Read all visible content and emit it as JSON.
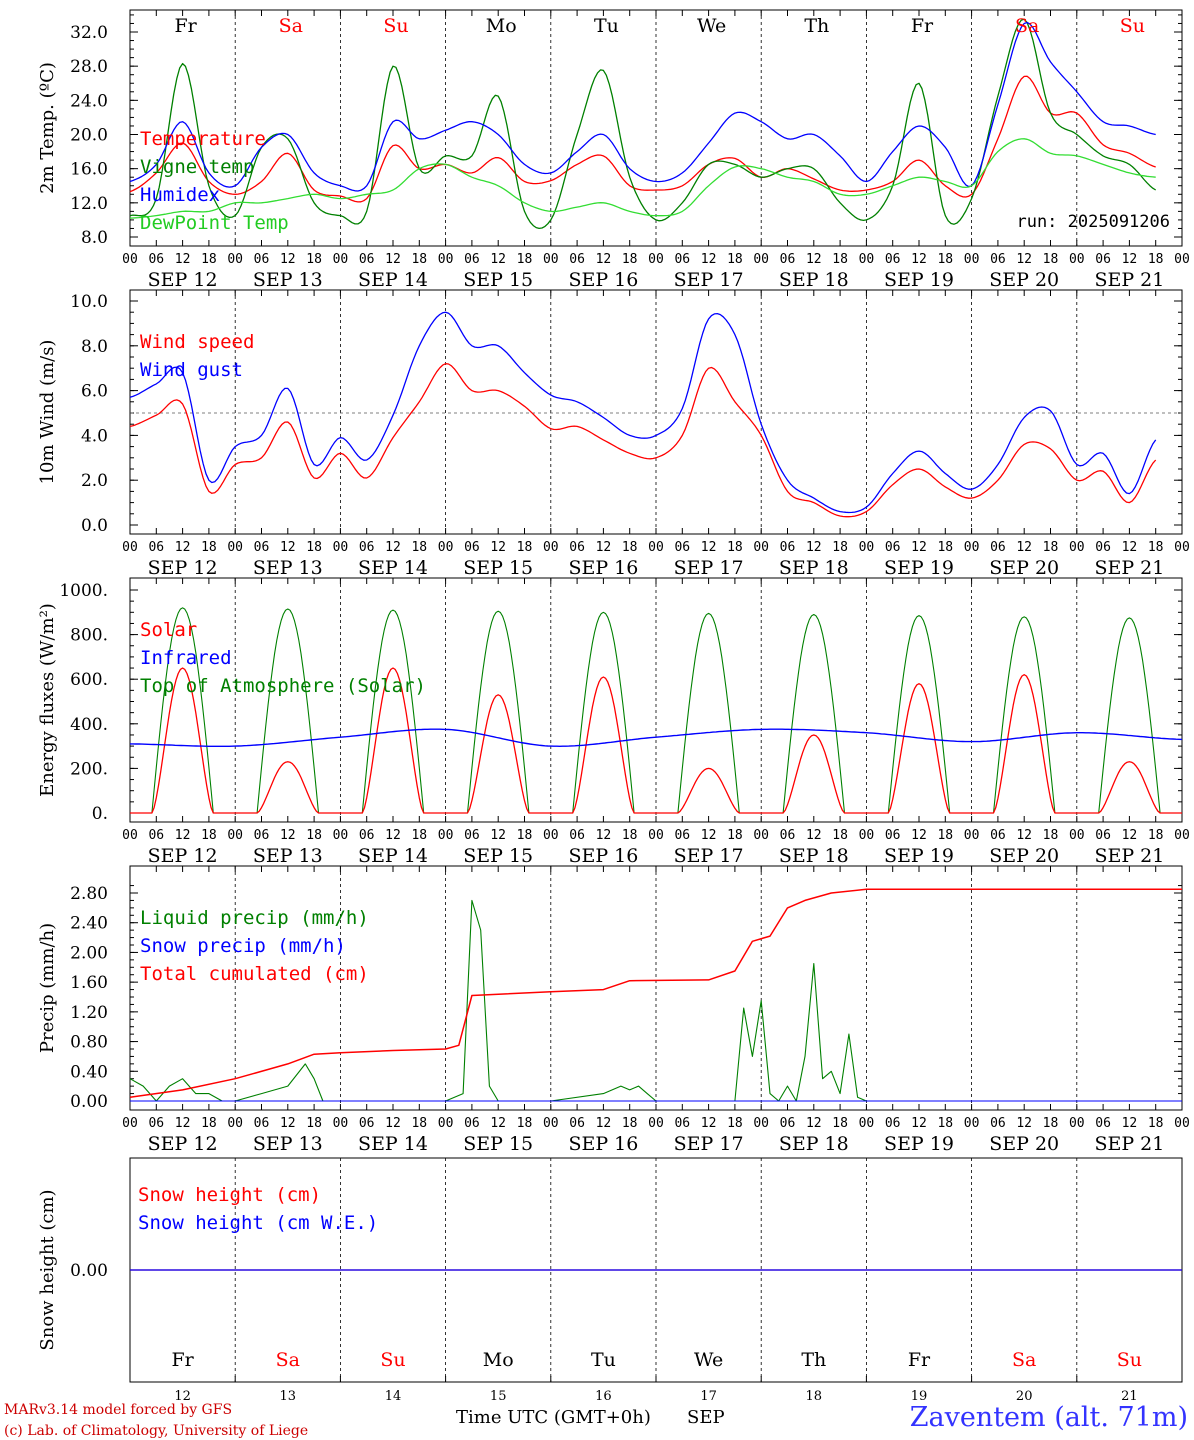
{
  "colors": {
    "red": "#ff0000",
    "green": "#008000",
    "blue": "#0000ff",
    "lightgreen": "#33dd33",
    "axis": "#000000"
  },
  "day_names": [
    "Fr",
    "Sa",
    "Su",
    "Mo",
    "Tu",
    "We",
    "Th",
    "Fr",
    "Sa",
    "Su"
  ],
  "weekend_days": [
    1,
    2,
    8,
    9
  ],
  "date_labels": [
    "SEP 12",
    "SEP 13",
    "SEP 14",
    "SEP 15",
    "SEP 16",
    "SEP 17",
    "SEP 18",
    "SEP 19",
    "SEP 20",
    "SEP 21"
  ],
  "hour_ticks": [
    "00",
    "06",
    "12",
    "18"
  ],
  "day_numbers": [
    "12",
    "13",
    "14",
    "15",
    "16",
    "17",
    "18",
    "19",
    "20",
    "21"
  ],
  "footer": {
    "model": "MARv3.14 model forced by GFS",
    "credit": "(c) Lab. of Climatology, University of Liege",
    "xlabel": "Time UTC (GMT+0h)",
    "month": "SEP",
    "station": "Zaventem (alt. 71m)"
  },
  "chart_data": [
    {
      "type": "line",
      "ylabel": "2m Temp. (ºC)",
      "ylim": [
        8,
        34
      ],
      "yticks": [
        "8.0",
        "12.0",
        "16.0",
        "20.0",
        "24.0",
        "28.0",
        "32.0"
      ],
      "ytick_values": [
        8,
        12,
        16,
        20,
        24,
        28,
        32
      ],
      "annotation": "run: 2025091206",
      "legend": [
        "Temperature",
        "Vigne temp",
        "Humidex",
        "DewPoint Temp"
      ],
      "x_hours": [
        0,
        6,
        12,
        18,
        24,
        30,
        36,
        42,
        48,
        54,
        60,
        66,
        72,
        78,
        84,
        90,
        96,
        102,
        108,
        114,
        120,
        126,
        132,
        138,
        144,
        150,
        156,
        162,
        168,
        174,
        180,
        186,
        192,
        198,
        204,
        210,
        216,
        222,
        228,
        234
      ],
      "series": [
        {
          "name": "Temperature",
          "color": "red",
          "values": [
            13.3,
            15.5,
            19.0,
            14.5,
            13.0,
            14.5,
            17.8,
            13.5,
            12.8,
            12.5,
            18.7,
            16.0,
            16.5,
            15.5,
            17.3,
            14.5,
            14.6,
            16.5,
            17.5,
            14.0,
            13.5,
            14.0,
            16.5,
            17.2,
            15.0,
            16.0,
            14.8,
            13.5,
            13.5,
            14.5,
            17.0,
            14.0,
            13.0,
            19.5,
            26.8,
            22.5,
            22.5,
            18.8,
            17.8,
            16.2
          ]
        },
        {
          "name": "Vigne temp",
          "color": "green",
          "values": [
            10.5,
            12.5,
            28.3,
            14.0,
            10.5,
            18.5,
            19.5,
            12.0,
            10.5,
            11.0,
            28.0,
            16.0,
            17.5,
            17.5,
            24.5,
            11.0,
            10.0,
            20.0,
            27.5,
            15.0,
            10.0,
            12.0,
            16.5,
            16.5,
            15.0,
            16.0,
            16.0,
            12.0,
            10.0,
            14.0,
            26.0,
            10.5,
            12.5,
            24.5,
            33.5,
            22.5,
            20.0,
            17.5,
            16.5,
            13.5
          ]
        },
        {
          "name": "Humidex",
          "color": "blue",
          "values": [
            14.5,
            16.5,
            21.5,
            15.5,
            14.0,
            18.5,
            20.0,
            15.5,
            14.0,
            14.0,
            21.5,
            19.5,
            20.5,
            21.5,
            20.0,
            16.5,
            15.5,
            18.0,
            20.0,
            16.0,
            14.5,
            15.5,
            19.0,
            22.5,
            21.5,
            19.5,
            20.0,
            17.5,
            14.5,
            18.0,
            21.0,
            18.5,
            14.0,
            23.5,
            33.0,
            28.5,
            25.0,
            21.5,
            21.0,
            20.0
          ]
        },
        {
          "name": "DewPoint Temp",
          "color": "lightgreen",
          "values": [
            10.2,
            10.5,
            11.0,
            11.0,
            12.0,
            12.0,
            12.5,
            13.0,
            12.5,
            13.0,
            13.5,
            16.0,
            16.5,
            15.0,
            14.0,
            12.0,
            11.0,
            11.5,
            12.0,
            11.0,
            10.5,
            11.0,
            14.0,
            16.2,
            16.0,
            15.0,
            14.5,
            13.0,
            13.0,
            14.0,
            15.0,
            14.5,
            14.0,
            18.0,
            19.5,
            17.8,
            17.5,
            16.5,
            15.5,
            15.0
          ]
        }
      ]
    },
    {
      "type": "line",
      "ylabel": "10m Wind (m/s)",
      "ylim": [
        0,
        10
      ],
      "yticks": [
        "0.0",
        "2.0",
        "4.0",
        "6.0",
        "8.0",
        "10.0"
      ],
      "ytick_values": [
        0,
        2,
        4,
        6,
        8,
        10
      ],
      "reference_line": 5,
      "legend": [
        "Wind speed",
        "Wind gust"
      ],
      "x_hours": [
        0,
        6,
        12,
        18,
        24,
        30,
        36,
        42,
        48,
        54,
        60,
        66,
        72,
        78,
        84,
        90,
        96,
        102,
        108,
        114,
        120,
        126,
        132,
        138,
        144,
        150,
        156,
        162,
        168,
        174,
        180,
        186,
        192,
        198,
        204,
        210,
        216,
        222,
        228,
        234
      ],
      "series": [
        {
          "name": "Wind speed",
          "color": "red",
          "values": [
            4.4,
            4.9,
            5.4,
            1.5,
            2.7,
            3.0,
            4.6,
            2.1,
            3.2,
            2.1,
            3.9,
            5.5,
            7.2,
            6.0,
            6.0,
            5.3,
            4.3,
            4.4,
            3.8,
            3.2,
            3.0,
            4.0,
            7.0,
            5.5,
            4.0,
            1.5,
            1.0,
            0.4,
            0.6,
            1.8,
            2.5,
            1.7,
            1.2,
            2.0,
            3.6,
            3.4,
            2.0,
            2.4,
            1.0,
            2.9
          ]
        },
        {
          "name": "Wind gust",
          "color": "blue",
          "values": [
            5.7,
            6.3,
            6.8,
            2.0,
            3.5,
            4.0,
            6.1,
            2.7,
            3.9,
            2.9,
            4.9,
            8.0,
            9.5,
            8.0,
            8.0,
            6.8,
            5.8,
            5.5,
            4.8,
            4.0,
            4.0,
            5.2,
            9.2,
            8.5,
            4.5,
            2.0,
            1.2,
            0.6,
            0.8,
            2.3,
            3.3,
            2.3,
            1.6,
            2.7,
            4.8,
            5.1,
            2.7,
            3.2,
            1.4,
            3.8
          ]
        }
      ]
    },
    {
      "type": "line",
      "ylabel": "Energy fluxes (W/m²)",
      "ylim": [
        0,
        1000
      ],
      "yticks": [
        "0.",
        "200.",
        "400.",
        "600.",
        "800.",
        "1000."
      ],
      "ytick_values": [
        0,
        200,
        400,
        600,
        800,
        1000
      ],
      "legend": [
        "Solar",
        "Infrared",
        "Top of Atmosphere (Solar)"
      ],
      "toa_peaks": [
        920,
        915,
        910,
        905,
        900,
        895,
        890,
        885,
        880,
        875
      ],
      "solar_peaks": [
        650,
        230,
        650,
        530,
        610,
        200,
        350,
        580,
        620,
        230
      ],
      "infrared": {
        "x_hours": [
          0,
          24,
          48,
          72,
          96,
          120,
          144,
          168,
          192,
          216,
          240
        ],
        "values": [
          310,
          300,
          340,
          375,
          300,
          340,
          375,
          360,
          320,
          360,
          330
        ]
      },
      "series": [
        {
          "name": "Solar",
          "color": "red"
        },
        {
          "name": "Infrared",
          "color": "blue"
        },
        {
          "name": "Top of Atmosphere (Solar)",
          "color": "green"
        }
      ]
    },
    {
      "type": "line",
      "ylabel": "Precip (mm/h)",
      "ylim": [
        0,
        2.9
      ],
      "yticks": [
        "0.00",
        "0.40",
        "0.80",
        "1.20",
        "1.60",
        "2.00",
        "2.40",
        "2.80"
      ],
      "ytick_values": [
        0,
        0.4,
        0.8,
        1.2,
        1.6,
        2.0,
        2.4,
        2.8
      ],
      "legend": [
        "Liquid precip (mm/h)",
        "Snow precip (mm/h)",
        "Total cumulated (cm)"
      ],
      "series": [
        {
          "name": "Liquid precip (mm/h)",
          "color": "green",
          "x_hours": [
            0,
            3,
            6,
            9,
            12,
            15,
            18,
            21,
            24,
            30,
            36,
            40,
            42,
            44,
            46,
            48,
            72,
            76,
            78,
            80,
            82,
            84,
            96,
            108,
            112,
            114,
            116,
            118,
            120,
            138,
            140,
            142,
            144,
            146,
            148,
            150,
            152,
            154,
            156,
            158,
            160,
            162,
            164,
            166,
            168,
            240
          ],
          "values": [
            0.3,
            0.2,
            0.0,
            0.2,
            0.3,
            0.1,
            0.1,
            0.0,
            0.0,
            0.1,
            0.2,
            0.5,
            0.3,
            0.0,
            0.0,
            0.0,
            0.0,
            0.1,
            2.7,
            2.3,
            0.2,
            0.0,
            0.0,
            0.1,
            0.2,
            0.15,
            0.2,
            0.1,
            0.0,
            0.0,
            1.25,
            0.6,
            1.35,
            0.1,
            0.0,
            0.2,
            0.0,
            0.6,
            1.85,
            0.3,
            0.4,
            0.1,
            0.9,
            0.05,
            0.0,
            0.0
          ]
        },
        {
          "name": "Snow precip (mm/h)",
          "color": "blue",
          "x_hours": [
            0,
            240
          ],
          "values": [
            0,
            0
          ]
        },
        {
          "name": "Total cumulated (cm)",
          "color": "red",
          "x_hours": [
            0,
            12,
            24,
            36,
            42,
            48,
            60,
            72,
            75,
            78,
            96,
            108,
            114,
            132,
            138,
            142,
            146,
            150,
            154,
            160,
            168,
            240
          ],
          "values": [
            0.05,
            0.15,
            0.3,
            0.5,
            0.63,
            0.65,
            0.68,
            0.7,
            0.75,
            1.42,
            1.47,
            1.5,
            1.62,
            1.63,
            1.75,
            2.15,
            2.22,
            2.6,
            2.7,
            2.8,
            2.85,
            2.85
          ]
        }
      ]
    },
    {
      "type": "line",
      "ylabel": "Snow height (cm)",
      "ylim": [
        -1,
        1
      ],
      "yticks": [
        "0.00"
      ],
      "ytick_values": [
        0
      ],
      "legend": [
        "Snow height (cm)",
        "Snow height (cm W.E.)"
      ],
      "series": [
        {
          "name": "Snow height (cm)",
          "color": "red",
          "x_hours": [
            0,
            240
          ],
          "values": [
            0,
            0
          ]
        },
        {
          "name": "Snow height (cm W.E.)",
          "color": "blue",
          "x_hours": [
            0,
            240
          ],
          "values": [
            0,
            0
          ]
        }
      ]
    }
  ]
}
